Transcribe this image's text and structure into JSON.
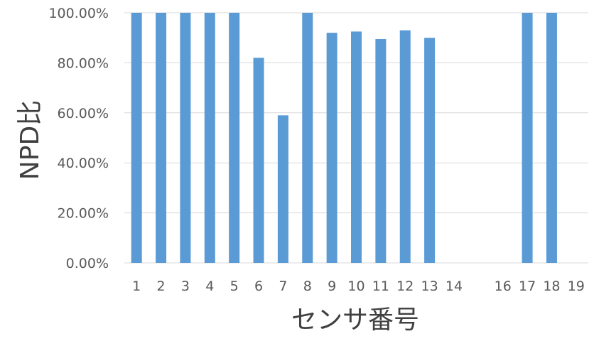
{
  "chart_data": {
    "type": "bar",
    "categories": [
      "1",
      "2",
      "3",
      "4",
      "5",
      "6",
      "7",
      "8",
      "9",
      "10",
      "11",
      "12",
      "13",
      "14",
      "",
      "16",
      "17",
      "18",
      "19"
    ],
    "values": [
      1.0,
      1.0,
      1.0,
      1.0,
      1.0,
      0.82,
      0.59,
      1.0,
      0.92,
      0.925,
      0.895,
      0.93,
      0.9,
      0,
      0,
      0,
      1.0,
      1.0,
      0
    ],
    "xlabel": "センサ番号",
    "ylabel": "NPD比",
    "ylim": [
      0,
      1
    ],
    "yticks": [
      "0.00%",
      "20.00%",
      "40.00%",
      "60.00%",
      "80.00%",
      "100.00%"
    ],
    "grid": true,
    "bar_color": "#5B9BD5",
    "grid_color": "#D9D9D9"
  }
}
